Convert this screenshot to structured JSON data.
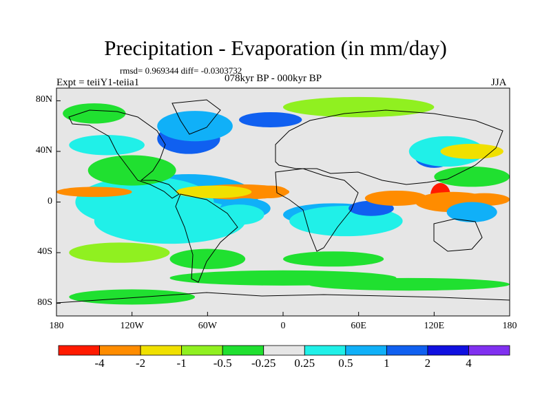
{
  "header": {
    "title": "Precipitation - Evaporation (in mm/day)",
    "stats": "rmsd= 0.969344 diff= -0.0303732",
    "experiment": "Expt = teiiY1-teiia1",
    "period": "078kyr BP - 000kyr BP",
    "season": "JJA"
  },
  "axes": {
    "y_ticks": [
      "80N",
      "40N",
      "0",
      "40S",
      "80S"
    ],
    "x_ticks": [
      "180",
      "120W",
      "60W",
      "0",
      "60E",
      "120E",
      "180"
    ]
  },
  "colorbar": {
    "labels": [
      "-4",
      "-2",
      "-1",
      "-0.5",
      "-0.25",
      "0.25",
      "0.5",
      "1",
      "2",
      "4"
    ],
    "colors": [
      "#ff1a00",
      "#ff8c00",
      "#f0e000",
      "#90f020",
      "#20e030",
      "#e6e6e6",
      "#20f0e8",
      "#10b0f8",
      "#1060f0",
      "#1010e0",
      "#8030f0"
    ]
  },
  "colors": {
    "land_background": "#e6e6e6",
    "coastline": "#000000"
  },
  "chart_data": {
    "type": "heatmap",
    "title": "Precipitation - Evaporation (in mm/day)",
    "x_range": [
      -180,
      180
    ],
    "y_range": [
      -90,
      90
    ],
    "levels": [
      -4,
      -2,
      -1,
      -0.5,
      -0.25,
      0.25,
      0.5,
      1,
      2,
      4
    ],
    "regions": [
      {
        "class": 9,
        "lon": -70,
        "lat": 2,
        "rlon": 24,
        "rlat": 9
      },
      {
        "class": 8,
        "lon": -110,
        "lat": 3,
        "rlon": 14,
        "rlat": 5
      },
      {
        "class": 8,
        "lon": -70,
        "lat": 4,
        "rlon": 38,
        "rlat": 14
      },
      {
        "class": 7,
        "lon": -75,
        "lat": 2,
        "rlon": 55,
        "rlat": 20
      },
      {
        "class": 7,
        "lon": -130,
        "lat": 5,
        "rlon": 30,
        "rlat": 8
      },
      {
        "class": 6,
        "lon": -110,
        "lat": 0,
        "rlon": 55,
        "rlat": 20
      },
      {
        "class": 6,
        "lon": -90,
        "lat": -15,
        "rlon": 60,
        "rlat": 18
      },
      {
        "class": 1,
        "lon": -35,
        "lat": 8,
        "rlon": 40,
        "rlat": 6
      },
      {
        "class": 2,
        "lon": -55,
        "lat": 8,
        "rlon": 30,
        "rlat": 5
      },
      {
        "class": 1,
        "lon": -10,
        "lat": 8,
        "rlon": 14,
        "rlat": 5
      },
      {
        "class": 1,
        "lon": -150,
        "lat": 8,
        "rlon": 30,
        "rlat": 4
      },
      {
        "class": 7,
        "lon": -30,
        "lat": -5,
        "rlon": 20,
        "rlat": 8
      },
      {
        "class": 6,
        "lon": -35,
        "lat": -10,
        "rlon": 20,
        "rlat": 8
      },
      {
        "class": 8,
        "lon": 30,
        "lat": -8,
        "rlon": 22,
        "rlat": 5
      },
      {
        "class": 7,
        "lon": 40,
        "lat": -10,
        "rlon": 40,
        "rlat": 9
      },
      {
        "class": 6,
        "lon": 50,
        "lat": -15,
        "rlon": 45,
        "rlat": 12
      },
      {
        "class": 8,
        "lon": 70,
        "lat": -5,
        "rlon": 18,
        "rlat": 6
      },
      {
        "class": 1,
        "lon": 90,
        "lat": 3,
        "rlon": 25,
        "rlat": 6
      },
      {
        "class": 0,
        "lon": 125,
        "lat": 5,
        "rlon": 8,
        "rlat": 10
      },
      {
        "class": 1,
        "lon": 135,
        "lat": 0,
        "rlon": 30,
        "rlat": 8
      },
      {
        "class": 1,
        "lon": 160,
        "lat": 2,
        "rlon": 20,
        "rlat": 5
      },
      {
        "class": 9,
        "lon": 145,
        "lat": -10,
        "rlon": 10,
        "rlat": 5
      },
      {
        "class": 7,
        "lon": 150,
        "lat": -8,
        "rlon": 20,
        "rlat": 8
      },
      {
        "class": 8,
        "lon": 120,
        "lat": 35,
        "rlon": 15,
        "rlat": 8
      },
      {
        "class": 6,
        "lon": 130,
        "lat": 40,
        "rlon": 30,
        "rlat": 12
      },
      {
        "class": 2,
        "lon": 150,
        "lat": 40,
        "rlon": 25,
        "rlat": 6
      },
      {
        "class": 4,
        "lon": 150,
        "lat": 20,
        "rlon": 30,
        "rlat": 8
      },
      {
        "class": 4,
        "lon": -120,
        "lat": 25,
        "rlon": 35,
        "rlat": 12
      },
      {
        "class": 6,
        "lon": -140,
        "lat": 45,
        "rlon": 30,
        "rlat": 8
      },
      {
        "class": 8,
        "lon": -75,
        "lat": 50,
        "rlon": 25,
        "rlat": 12
      },
      {
        "class": 7,
        "lon": -70,
        "lat": 60,
        "rlon": 30,
        "rlat": 12
      },
      {
        "class": 8,
        "lon": -10,
        "lat": 65,
        "rlon": 25,
        "rlat": 6
      },
      {
        "class": 3,
        "lon": 60,
        "lat": 75,
        "rlon": 60,
        "rlat": 8
      },
      {
        "class": 4,
        "lon": -150,
        "lat": 70,
        "rlon": 25,
        "rlat": 8
      },
      {
        "class": 3,
        "lon": -130,
        "lat": -40,
        "rlon": 40,
        "rlat": 8
      },
      {
        "class": 4,
        "lon": -60,
        "lat": -45,
        "rlon": 30,
        "rlat": 8
      },
      {
        "class": 4,
        "lon": 40,
        "lat": -45,
        "rlon": 40,
        "rlat": 6
      },
      {
        "class": 4,
        "lon": 0,
        "lat": -60,
        "rlon": 90,
        "rlat": 6
      },
      {
        "class": 4,
        "lon": 100,
        "lat": -65,
        "rlon": 80,
        "rlat": 5
      },
      {
        "class": 4,
        "lon": -120,
        "lat": -75,
        "rlon": 50,
        "rlat": 6
      }
    ]
  }
}
